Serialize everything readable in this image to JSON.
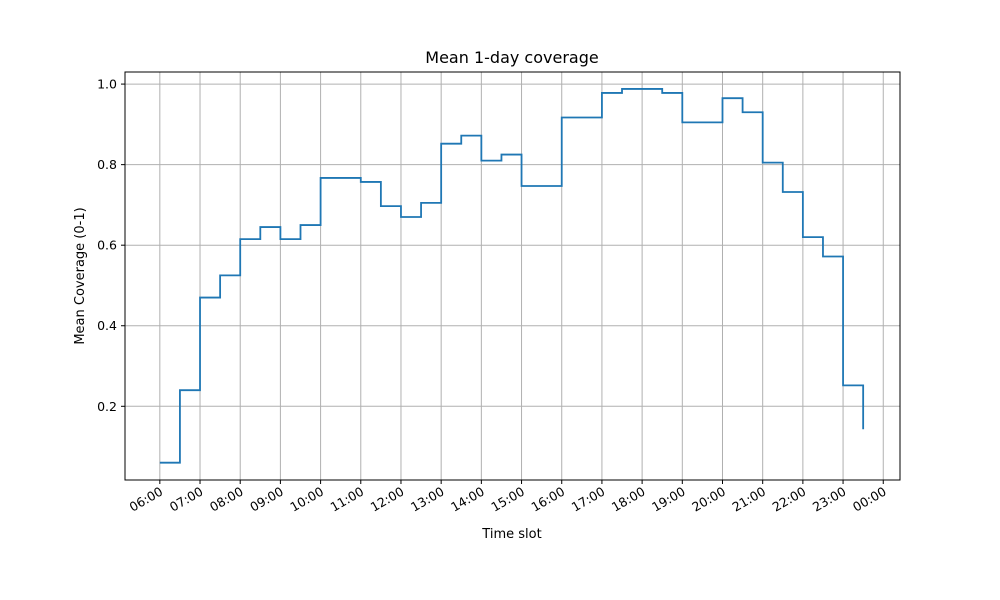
{
  "chart_data": {
    "type": "line",
    "step": "post",
    "title": "Mean 1-day coverage",
    "xlabel": "Time slot",
    "ylabel": "Mean Coverage (0-1)",
    "x_ticks": [
      "06:00",
      "07:00",
      "08:00",
      "09:00",
      "10:00",
      "11:00",
      "12:00",
      "13:00",
      "14:00",
      "15:00",
      "16:00",
      "17:00",
      "18:00",
      "19:00",
      "20:00",
      "21:00",
      "22:00",
      "23:00",
      "00:00"
    ],
    "y_ticks": [
      "0.2",
      "0.4",
      "0.6",
      "0.8",
      "1.0"
    ],
    "y_tick_values": [
      0.2,
      0.4,
      0.6,
      0.8,
      1.0
    ],
    "xlim": [
      "05:08",
      "00:25"
    ],
    "ylim": [
      0.017,
      1.03
    ],
    "grid": true,
    "line_color": "#1f77b4",
    "series": [
      {
        "x": [
          "06:00",
          "06:30",
          "07:00",
          "07:30",
          "08:00",
          "08:30",
          "09:00",
          "09:30",
          "10:00",
          "11:00",
          "11:30",
          "12:00",
          "12:30",
          "13:00",
          "13:30",
          "14:00",
          "14:30",
          "15:00",
          "16:00",
          "17:00",
          "17:30",
          "18:30",
          "19:00",
          "20:00",
          "20:30",
          "21:00",
          "21:30",
          "22:00",
          "22:30",
          "23:00",
          "23:30"
        ],
        "y": [
          0.06,
          0.24,
          0.47,
          0.525,
          0.615,
          0.645,
          0.615,
          0.65,
          0.767,
          0.757,
          0.697,
          0.67,
          0.705,
          0.852,
          0.872,
          0.81,
          0.825,
          0.747,
          0.917,
          0.978,
          0.988,
          0.978,
          0.905,
          0.965,
          0.93,
          0.805,
          0.732,
          0.62,
          0.572,
          0.252,
          0.143
        ]
      }
    ]
  }
}
